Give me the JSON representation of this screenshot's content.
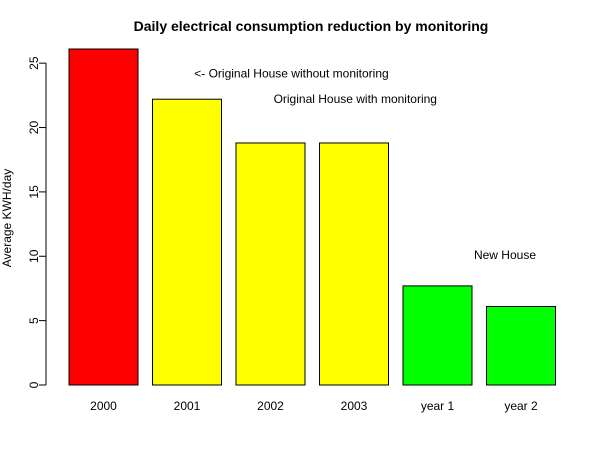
{
  "chart_data": {
    "type": "bar",
    "title": "Daily electrical consumption reduction by monitoring",
    "xlabel": "",
    "ylabel": "Average KWH/day",
    "categories": [
      "2000",
      "2001",
      "2002",
      "2003",
      "year 1",
      "year 2"
    ],
    "values": [
      26.1,
      22.2,
      18.8,
      18.8,
      7.7,
      6.1
    ],
    "bar_colors": [
      "#ff0000",
      "#ffff00",
      "#ffff00",
      "#ffff00",
      "#00ff00",
      "#00ff00"
    ],
    "ylim": [
      0,
      26.1
    ],
    "yticks": [
      0,
      5,
      10,
      15,
      20,
      25
    ],
    "grid": false,
    "annotations": [
      {
        "text": "<- Original House without monitoring",
        "x": 2.0,
        "y": 23.9
      },
      {
        "text": "Original House with monitoring",
        "x": 2.95,
        "y": 21.9
      },
      {
        "text": "New House",
        "x": 5.35,
        "y": 9.8
      }
    ]
  }
}
